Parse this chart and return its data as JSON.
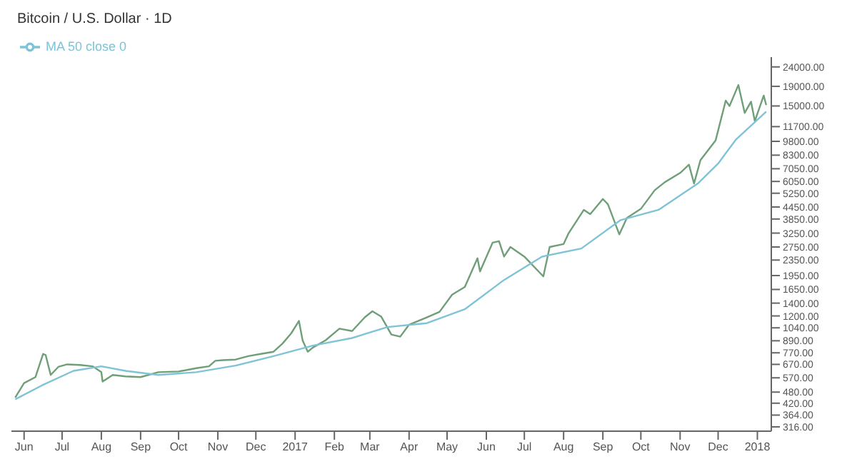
{
  "chart_data": {
    "type": "line",
    "title": "Bitcoin / U.S. Dollar · 1D",
    "log": "y",
    "legend": "top left",
    "marker": "none",
    "grid": false,
    "xlim": [
      "2016-05-22",
      "2018-01-12"
    ],
    "xticks": [
      {
        "value": "2016-06-01",
        "label": "Jun"
      },
      {
        "value": "2016-07-01",
        "label": "Jul"
      },
      {
        "value": "2016-08-01",
        "label": "Aug"
      },
      {
        "value": "2016-09-01",
        "label": "Sep"
      },
      {
        "value": "2016-10-01",
        "label": "Oct"
      },
      {
        "value": "2016-11-01",
        "label": "Nov"
      },
      {
        "value": "2016-12-01",
        "label": "Dec"
      },
      {
        "value": "2017-01-01",
        "label": "2017"
      },
      {
        "value": "2017-02-01",
        "label": "Feb"
      },
      {
        "value": "2017-03-01",
        "label": "Mar"
      },
      {
        "value": "2017-04-01",
        "label": "Apr"
      },
      {
        "value": "2017-05-01",
        "label": "May"
      },
      {
        "value": "2017-06-01",
        "label": "Jun"
      },
      {
        "value": "2017-07-01",
        "label": "Jul"
      },
      {
        "value": "2017-08-01",
        "label": "Aug"
      },
      {
        "value": "2017-09-01",
        "label": "Sep"
      },
      {
        "value": "2017-10-01",
        "label": "Oct"
      },
      {
        "value": "2017-11-01",
        "label": "Nov"
      },
      {
        "value": "2017-12-01",
        "label": "Dec"
      },
      {
        "value": "2018-01-01",
        "label": "2018"
      }
    ],
    "ylim": [
      300,
      27000
    ],
    "yticks": [
      {
        "value": 24000,
        "label": "24000.00"
      },
      {
        "value": 19000,
        "label": "19000.00"
      },
      {
        "value": 15000,
        "label": "15000.00"
      },
      {
        "value": 11700,
        "label": "11700.00"
      },
      {
        "value": 9800,
        "label": "9800.00"
      },
      {
        "value": 8300,
        "label": "8300.00"
      },
      {
        "value": 7050,
        "label": "7050.00"
      },
      {
        "value": 6050,
        "label": "6050.00"
      },
      {
        "value": 5250,
        "label": "5250.00"
      },
      {
        "value": 4450,
        "label": "4450.00"
      },
      {
        "value": 3850,
        "label": "3850.00"
      },
      {
        "value": 3250,
        "label": "3250.00"
      },
      {
        "value": 2750,
        "label": "2750.00"
      },
      {
        "value": 2350,
        "label": "2350.00"
      },
      {
        "value": 1950,
        "label": "1950.00"
      },
      {
        "value": 1650,
        "label": "1650.00"
      },
      {
        "value": 1400,
        "label": "1400.00"
      },
      {
        "value": 1200,
        "label": "1200.00"
      },
      {
        "value": 1040,
        "label": "1040.00"
      },
      {
        "value": 890,
        "label": "890.00"
      },
      {
        "value": 770,
        "label": "770.00"
      },
      {
        "value": 670,
        "label": "670.00"
      },
      {
        "value": 570,
        "label": "570.00"
      },
      {
        "value": 480,
        "label": "480.00"
      },
      {
        "value": 420,
        "label": "420.00"
      },
      {
        "value": 364,
        "label": "364.00"
      },
      {
        "value": 316,
        "label": "316.00"
      }
    ],
    "series": [
      {
        "color": "#6f9f78",
        "x": [
          "2016-05-25",
          "2016-06-01",
          "2016-06-10",
          "2016-06-16",
          "2016-06-18",
          "2016-06-22",
          "2016-06-28",
          "2016-07-05",
          "2016-07-15",
          "2016-07-25",
          "2016-08-01",
          "2016-08-02",
          "2016-08-10",
          "2016-08-20",
          "2016-09-01",
          "2016-09-15",
          "2016-10-01",
          "2016-10-15",
          "2016-10-25",
          "2016-10-30",
          "2016-11-05",
          "2016-11-15",
          "2016-11-25",
          "2016-12-05",
          "2016-12-15",
          "2016-12-22",
          "2016-12-29",
          "2017-01-04",
          "2017-01-07",
          "2017-01-11",
          "2017-01-15",
          "2017-01-25",
          "2017-02-05",
          "2017-02-15",
          "2017-02-25",
          "2017-03-03",
          "2017-03-10",
          "2017-03-18",
          "2017-03-25",
          "2017-04-01",
          "2017-04-15",
          "2017-04-25",
          "2017-05-05",
          "2017-05-15",
          "2017-05-25",
          "2017-05-27",
          "2017-06-06",
          "2017-06-11",
          "2017-06-15",
          "2017-06-20",
          "2017-07-01",
          "2017-07-16",
          "2017-07-21",
          "2017-08-01",
          "2017-08-05",
          "2017-08-17",
          "2017-08-22",
          "2017-09-01",
          "2017-09-05",
          "2017-09-14",
          "2017-09-20",
          "2017-10-01",
          "2017-10-12",
          "2017-10-20",
          "2017-11-01",
          "2017-11-08",
          "2017-11-12",
          "2017-11-17",
          "2017-11-29",
          "2017-12-07",
          "2017-12-10",
          "2017-12-17",
          "2017-12-22",
          "2017-12-27",
          "2017-12-30",
          "2018-01-06",
          "2018-01-08"
        ],
        "values": [
          450,
          535,
          575,
          760,
          750,
          590,
          650,
          670,
          665,
          655,
          610,
          545,
          590,
          580,
          575,
          610,
          615,
          640,
          655,
          700,
          705,
          710,
          740,
          760,
          780,
          860,
          975,
          1130,
          890,
          780,
          820,
          895,
          1030,
          1000,
          1180,
          1270,
          1190,
          960,
          935,
          1080,
          1180,
          1260,
          1550,
          1700,
          2400,
          2050,
          2900,
          2950,
          2450,
          2750,
          2450,
          1930,
          2750,
          2850,
          3250,
          4300,
          4080,
          4900,
          4600,
          3200,
          3900,
          4350,
          5450,
          6000,
          6700,
          7400,
          5900,
          7800,
          9900,
          16000,
          15000,
          19300,
          13800,
          15800,
          12500,
          17000,
          15155
        ]
      },
      {
        "name": "MA 50 close 0",
        "color": "#7ec3d6",
        "x": [
          "2016-05-25",
          "2016-06-15",
          "2016-07-10",
          "2016-08-01",
          "2016-08-20",
          "2016-09-15",
          "2016-10-15",
          "2016-11-15",
          "2016-12-15",
          "2017-01-15",
          "2017-02-15",
          "2017-03-15",
          "2017-04-15",
          "2017-05-15",
          "2017-06-15",
          "2017-07-15",
          "2017-08-15",
          "2017-09-15",
          "2017-10-15",
          "2017-11-15",
          "2017-12-01",
          "2017-12-15",
          "2018-01-08"
        ],
        "values": [
          440,
          520,
          620,
          655,
          620,
          590,
          610,
          660,
          740,
          840,
          920,
          1050,
          1100,
          1300,
          1850,
          2450,
          2700,
          3800,
          4300,
          5900,
          7500,
          10000,
          14000
        ]
      }
    ]
  }
}
